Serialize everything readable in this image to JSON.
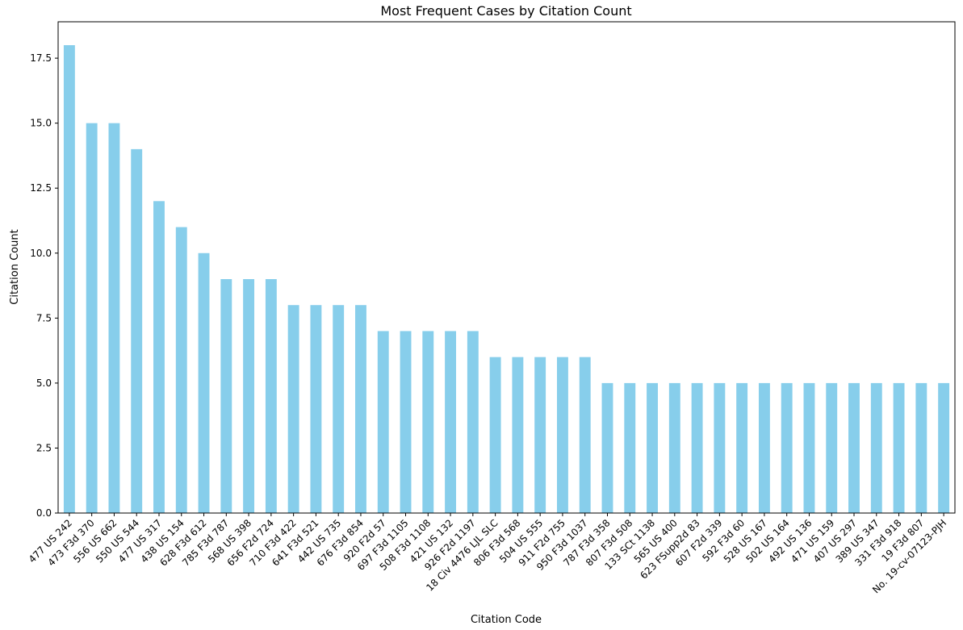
{
  "chart_data": {
    "type": "bar",
    "title": "Most Frequent Cases by Citation Count",
    "xlabel": "Citation Code",
    "ylabel": "Citation Count",
    "ylim": [
      0,
      18.9
    ],
    "yticks": [
      0.0,
      2.5,
      5.0,
      7.5,
      10.0,
      12.5,
      15.0,
      17.5
    ],
    "ytick_labels": [
      "0.0",
      "2.5",
      "5.0",
      "7.5",
      "10.0",
      "12.5",
      "15.0",
      "17.5"
    ],
    "grid": false,
    "bar_color": "#87CEEB",
    "categories": [
      "477 US 242",
      "473 F3d 370",
      "556 US 662",
      "550 US 544",
      "477 US 317",
      "438 US 154",
      "628 F3d 612",
      "785 F3d 787",
      "568 US 398",
      "656 F2d 724",
      "710 F3d 422",
      "641 F3d 521",
      "442 US 735",
      "676 F3d 854",
      "920 F2d 57",
      "697 F3d 1105",
      "508 F3d 1108",
      "421 US 132",
      "926 F2d 1197",
      "18 Civ 4476 LJL SLC",
      "806 F3d 568",
      "504 US 555",
      "911 F2d 755",
      "950 F3d 1037",
      "787 F3d 358",
      "807 F3d 508",
      "133 SCt 1138",
      "565 US 400",
      "623 FSupp2d 83",
      "607 F2d 339",
      "592 F3d 60",
      "528 US 167",
      "502 US 164",
      "492 US 136",
      "471 US 159",
      "407 US 297",
      "389 US 347",
      "331 F3d 918",
      "19 F3d 807",
      "No. 19-cv-07123-PJH"
    ],
    "values": [
      18,
      15,
      15,
      14,
      12,
      11,
      10,
      9,
      9,
      9,
      8,
      8,
      8,
      8,
      7,
      7,
      7,
      7,
      7,
      6,
      6,
      6,
      6,
      6,
      5,
      5,
      5,
      5,
      5,
      5,
      5,
      5,
      5,
      5,
      5,
      5,
      5,
      5,
      5,
      5
    ]
  }
}
